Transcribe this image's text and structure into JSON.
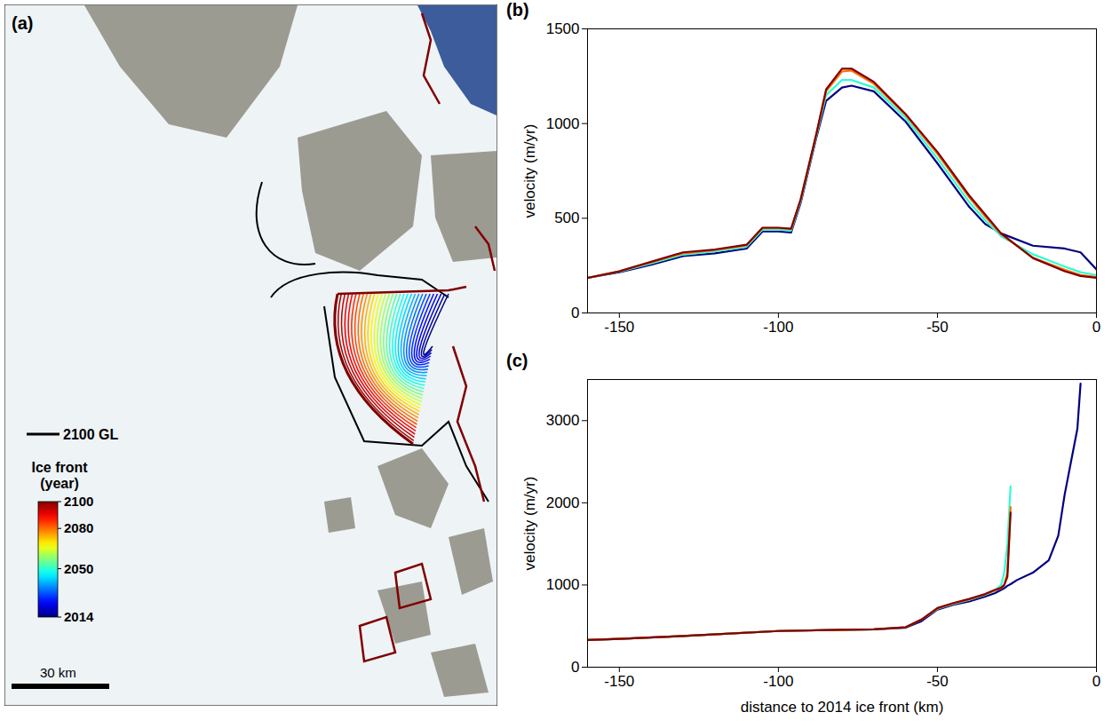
{
  "chart_data": [
    {
      "type": "map",
      "panel": "(a)",
      "legend_label": "2100 GL",
      "colorbar": {
        "title": [
          "Ice front",
          "(year)"
        ],
        "range": [
          2014,
          2100
        ],
        "ticks": [
          2014,
          2050,
          2080,
          2100
        ]
      },
      "scale_bar": "30 km"
    },
    {
      "type": "line",
      "panel": "(b)",
      "ylabel": "velocity (m/yr)",
      "xlabel": null,
      "xlim": [
        -160,
        0
      ],
      "xticks": [
        -150,
        -100,
        -50,
        0
      ],
      "ylim": [
        0,
        1500
      ],
      "yticks": [
        0,
        500,
        1000,
        1500
      ],
      "grid": false,
      "x": [
        -160,
        -150,
        -140,
        -130,
        -120,
        -110,
        -105,
        -100,
        -96,
        -93,
        -88,
        -85,
        -80,
        -77,
        -70,
        -60,
        -50,
        -40,
        -35,
        -30,
        -20,
        -10,
        -5,
        0
      ],
      "series": [
        {
          "name": "2014",
          "color": "#000080",
          "values": [
            185,
            215,
            255,
            300,
            315,
            340,
            430,
            430,
            425,
            580,
            930,
            1120,
            1190,
            1200,
            1170,
            1010,
            790,
            560,
            470,
            420,
            355,
            340,
            320,
            230
          ]
        },
        {
          "name": "2050",
          "color": "#2cffd3",
          "values": [
            185,
            218,
            262,
            308,
            325,
            350,
            440,
            440,
            435,
            590,
            940,
            1150,
            1230,
            1230,
            1190,
            1030,
            815,
            585,
            490,
            405,
            310,
            245,
            215,
            200
          ]
        },
        {
          "name": "2080",
          "color": "#ff6e00",
          "values": [
            185,
            220,
            268,
            315,
            332,
            357,
            448,
            448,
            443,
            598,
            948,
            1170,
            1275,
            1280,
            1210,
            1045,
            840,
            610,
            510,
            415,
            292,
            228,
            200,
            190
          ]
        },
        {
          "name": "2100",
          "color": "#800000",
          "values": [
            185,
            220,
            270,
            320,
            335,
            360,
            450,
            450,
            445,
            600,
            950,
            1180,
            1290,
            1290,
            1220,
            1050,
            850,
            620,
            520,
            420,
            290,
            220,
            195,
            185
          ]
        }
      ]
    },
    {
      "type": "line",
      "panel": "(c)",
      "ylabel": "velocity (m/yr)",
      "xlabel": "distance to 2014 ice front (km)",
      "xlim": [
        -160,
        0
      ],
      "xticks": [
        -150,
        -100,
        -50,
        0
      ],
      "ylim": [
        0,
        3500
      ],
      "yticks": [
        0,
        1000,
        2000,
        3000
      ],
      "grid": false,
      "x": [
        -160,
        -150,
        -130,
        -100,
        -80,
        -70,
        -60,
        -55,
        -50,
        -45,
        -40,
        -35,
        -32,
        -30,
        -29,
        -28,
        -27,
        -25,
        -20,
        -15,
        -12,
        -10,
        -8,
        -6,
        -5
      ],
      "series": [
        {
          "name": "2014",
          "color": "#000080",
          "values": [
            330,
            345,
            380,
            440,
            455,
            460,
            480,
            560,
            700,
            760,
            800,
            860,
            900,
            940,
            960,
            990,
            1010,
            1060,
            1150,
            1300,
            1600,
            2100,
            2500,
            2900,
            3450
          ]
        },
        {
          "name": "2050",
          "color": "#2cffd3",
          "values": [
            330,
            345,
            380,
            440,
            455,
            460,
            485,
            580,
            710,
            770,
            820,
            880,
            930,
            1000,
            1150,
            1500,
            2200,
            null,
            null,
            null,
            null,
            null,
            null,
            null,
            null
          ]
        },
        {
          "name": "2080",
          "color": "#ff6e00",
          "values": [
            330,
            345,
            380,
            440,
            455,
            460,
            485,
            580,
            715,
            775,
            825,
            885,
            935,
            960,
            1000,
            1150,
            1950,
            null,
            null,
            null,
            null,
            null,
            null,
            null,
            null
          ]
        },
        {
          "name": "2100",
          "color": "#800000",
          "values": [
            330,
            345,
            380,
            440,
            455,
            460,
            485,
            580,
            720,
            780,
            830,
            890,
            940,
            965,
            1000,
            1100,
            1880,
            null,
            null,
            null,
            null,
            null,
            null,
            null,
            null
          ]
        }
      ]
    }
  ]
}
